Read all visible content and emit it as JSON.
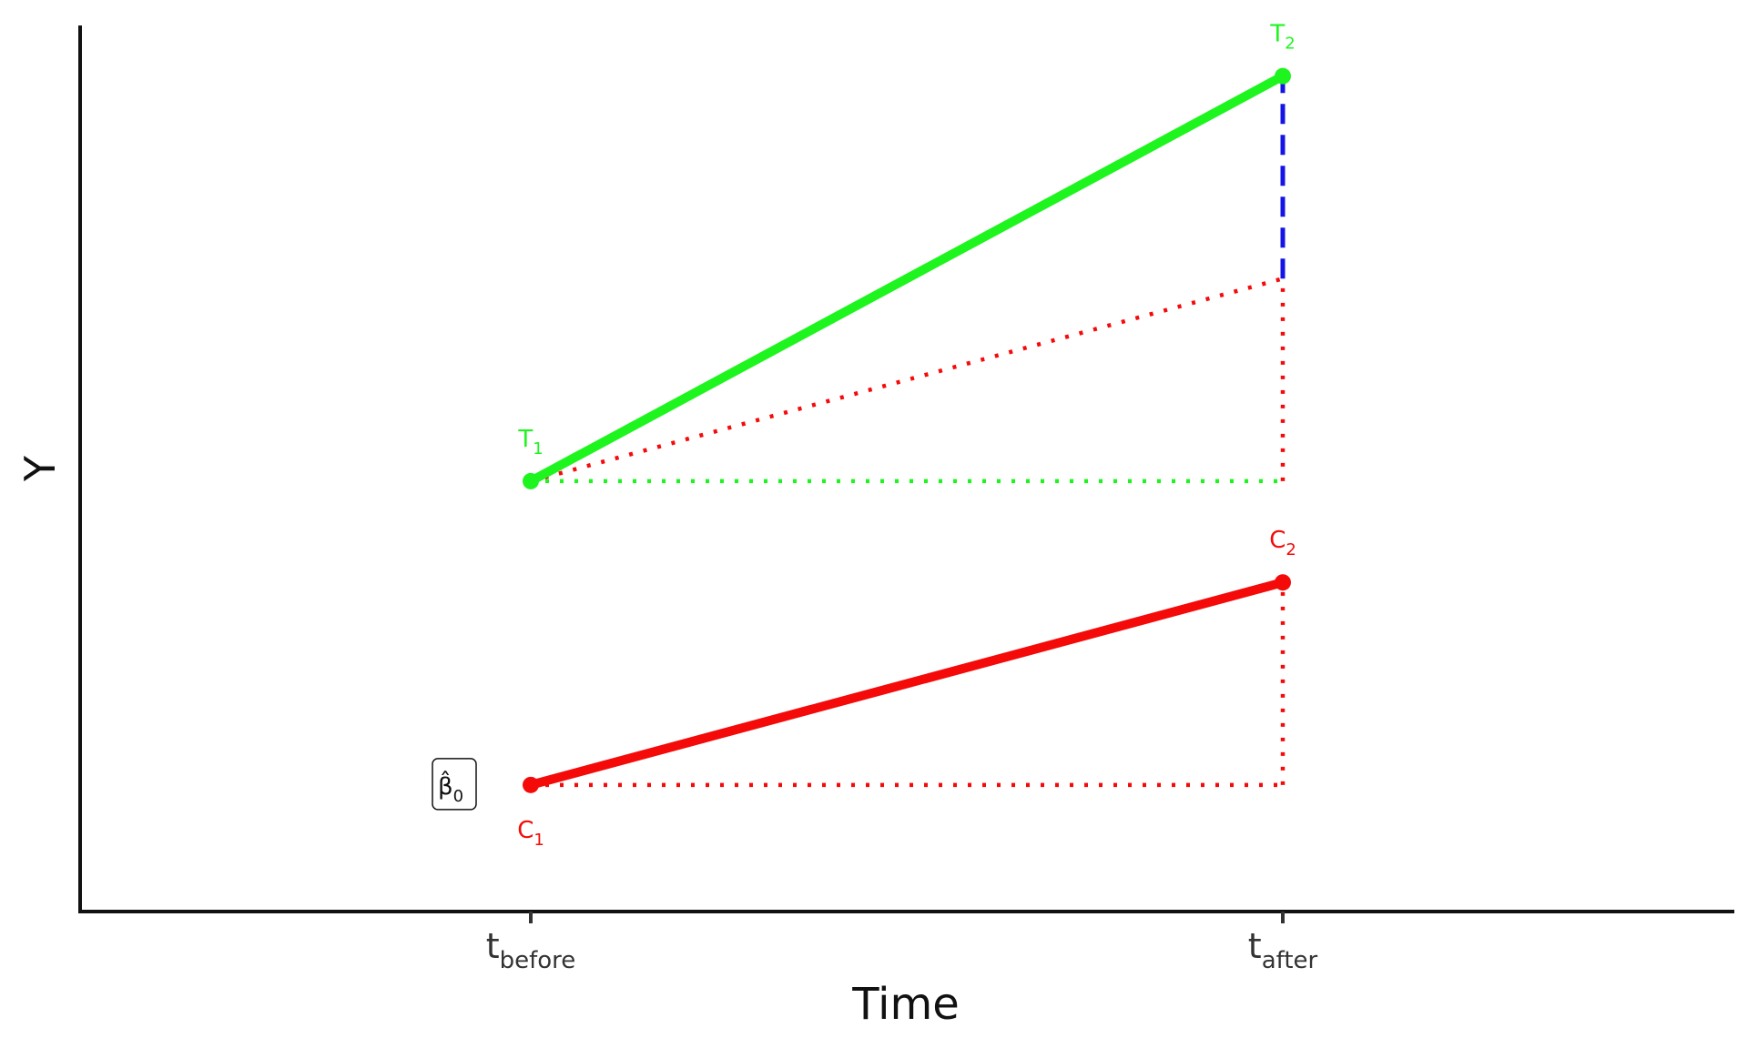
{
  "chart_data": {
    "type": "line",
    "title": "",
    "xlabel": "Time",
    "ylabel": "Y",
    "categories": [
      "t_before",
      "t_after"
    ],
    "x_ticks": [
      {
        "main": "t",
        "sub": "before"
      },
      {
        "main": "t",
        "sub": "after"
      }
    ],
    "ylim": [
      -1.5,
      16
    ],
    "grid": false,
    "series": [
      {
        "key": "treatment",
        "color": "#1ef51e",
        "values": [
          7,
          15
        ],
        "point_labels": [
          {
            "main": "T",
            "sub": "1"
          },
          {
            "main": "T",
            "sub": "2"
          }
        ]
      },
      {
        "key": "control",
        "color": "#f50a0a",
        "values": [
          1,
          5
        ],
        "point_labels": [
          {
            "main": "C",
            "sub": "1"
          },
          {
            "main": "C",
            "sub": "2"
          }
        ]
      }
    ],
    "guides": {
      "treatment_baseline": {
        "color": "#1ef51e",
        "from": [
          "t_before",
          7
        ],
        "to": [
          "t_after",
          7
        ]
      },
      "control_baseline": {
        "color": "#f50a0a",
        "from": [
          "t_before",
          1
        ],
        "to": [
          "t_after",
          1
        ]
      },
      "control_vertical": {
        "color": "#f50a0a",
        "from": [
          "t_after",
          1
        ],
        "to": [
          "t_after",
          5
        ]
      },
      "counterfactual_trend": {
        "color": "#f50a0a",
        "from": [
          "t_before",
          7
        ],
        "to": [
          "t_after",
          11
        ]
      },
      "counterfactual_vertical": {
        "color": "#f50a0a",
        "from": [
          "t_after",
          7
        ],
        "to": [
          "t_after",
          11
        ]
      },
      "did_effect": {
        "color": "#1414e6",
        "from": [
          "t_after",
          11
        ],
        "to": [
          "t_after",
          15
        ]
      }
    },
    "annotation": {
      "text": "β̂",
      "sub": "0",
      "at": [
        "t_before",
        1
      ]
    }
  }
}
